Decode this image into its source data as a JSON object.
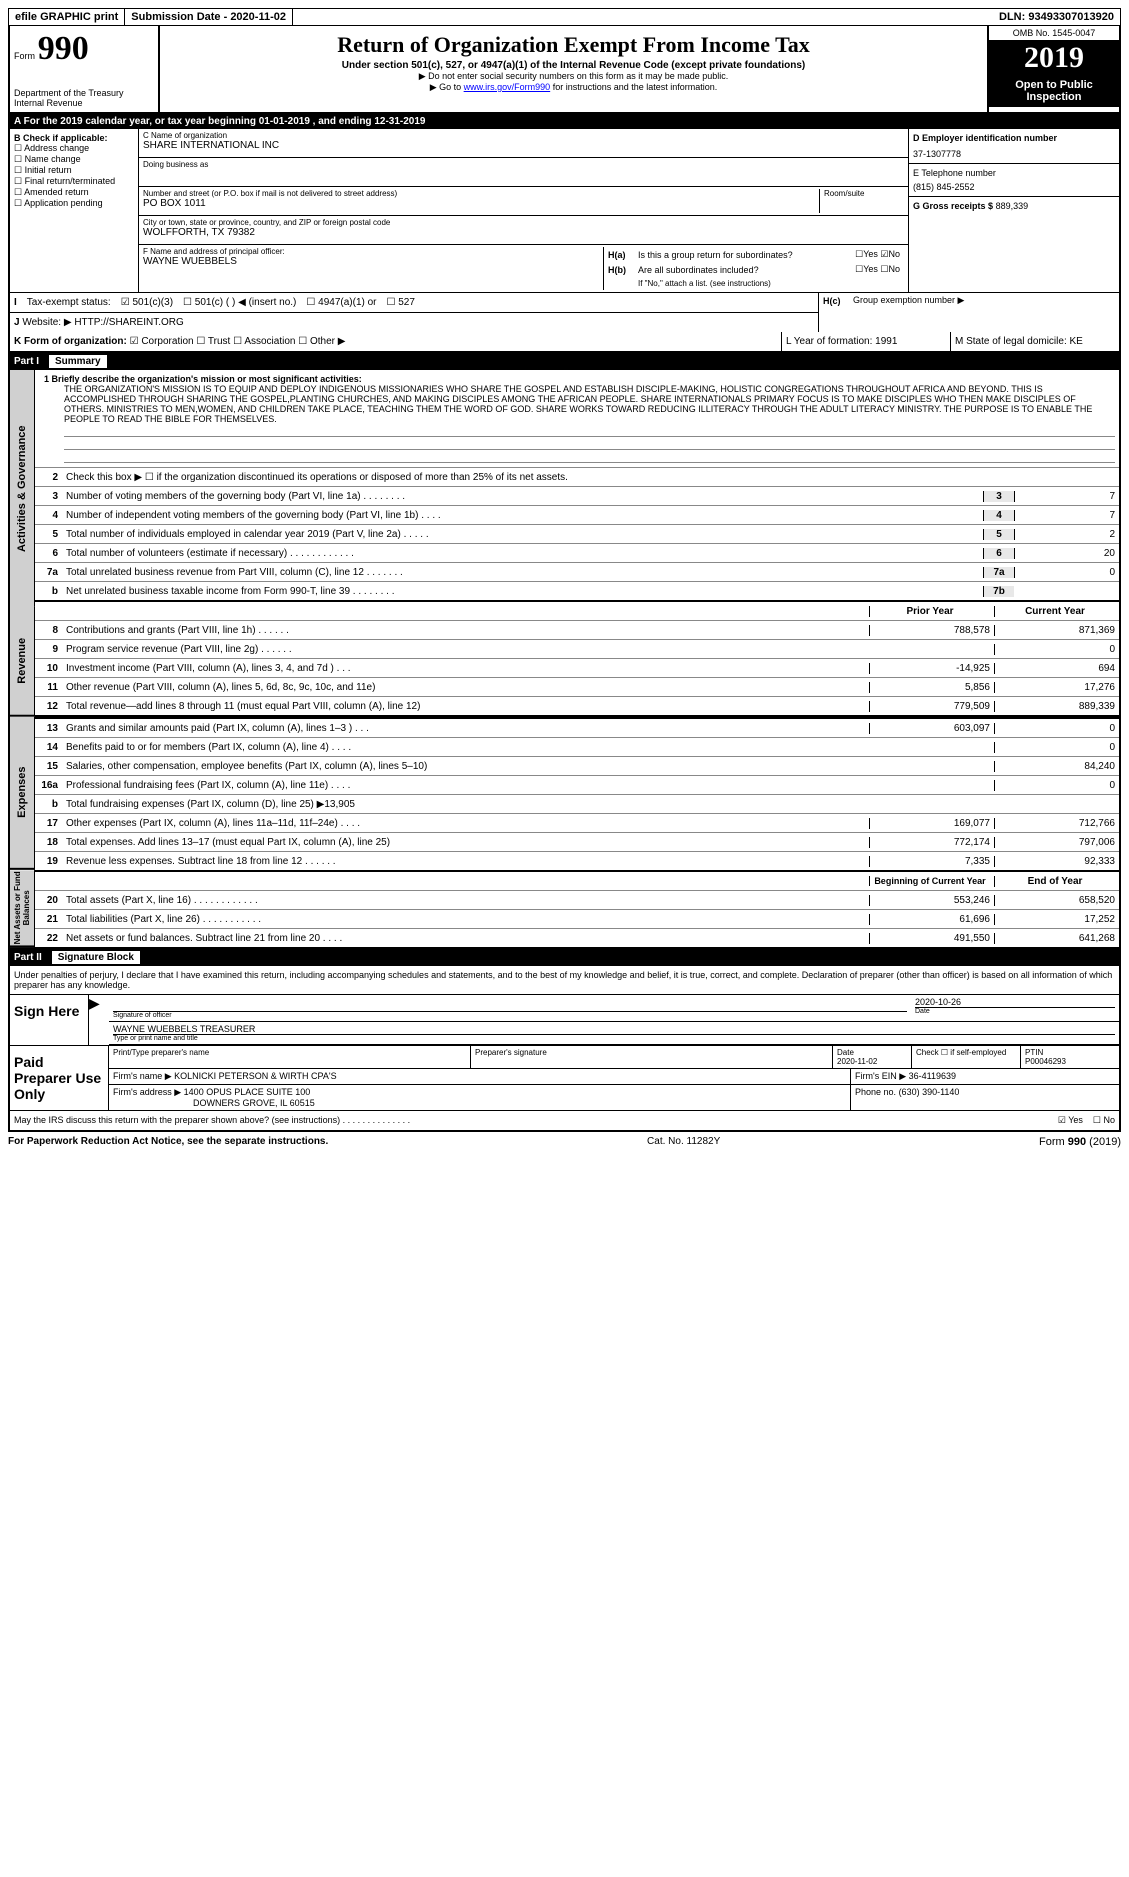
{
  "topbar": {
    "efile": "efile GRAPHIC print",
    "submission": "Submission Date - 2020-11-02",
    "dln": "DLN: 93493307013920"
  },
  "header": {
    "form_label": "Form",
    "form_num": "990",
    "dept": "Department of the Treasury\nInternal Revenue",
    "title": "Return of Organization Exempt From Income Tax",
    "subtitle": "Under section 501(c), 527, or 4947(a)(1) of the Internal Revenue Code (except private foundations)",
    "arrow1": "▶ Do not enter social security numbers on this form as it may be made public.",
    "arrow2_pre": "▶ Go to ",
    "arrow2_link": "www.irs.gov/Form990",
    "arrow2_post": " for instructions and the latest information.",
    "omb": "OMB No. 1545-0047",
    "year": "2019",
    "open": "Open to Public Inspection"
  },
  "row_a": "A  For the 2019 calendar year, or tax year beginning 01-01-2019     , and ending 12-31-2019",
  "col_b": {
    "title": "B Check if applicable:",
    "items": [
      "Address change",
      "Name change",
      "Initial return",
      "Final return/terminated",
      "Amended return",
      "Application pending"
    ]
  },
  "col_c": {
    "name_label": "C Name of organization",
    "name": "SHARE INTERNATIONAL INC",
    "dba_label": "Doing business as",
    "dba": "",
    "addr_label": "Number and street (or P.O. box if mail is not delivered to street address)",
    "addr": "PO BOX 1011",
    "room_label": "Room/suite",
    "city_label": "City or town, state or province, country, and ZIP or foreign postal code",
    "city": "WOLFFORTH, TX  79382",
    "officer_label": "F  Name and address of principal officer:",
    "officer": "WAYNE WUEBBELS"
  },
  "col_d": {
    "ein_label": "D Employer identification number",
    "ein": "37-1307778",
    "phone_label": "E Telephone number",
    "phone": "(815) 845-2552",
    "gross_label": "G Gross receipts $",
    "gross": "889,339"
  },
  "col_h": {
    "ha": "Is this a group return for subordinates?",
    "ha_yes": "Yes",
    "ha_no": "No",
    "ha_checked": "no",
    "hb": "Are all subordinates included?",
    "hb_note": "If \"No,\" attach a list. (see instructions)",
    "hc": "Group exemption number ▶"
  },
  "tax_status": {
    "label": "Tax-exempt status:",
    "opt1": "501(c)(3)",
    "opt2": "501(c) (  ) ◀ (insert no.)",
    "opt3": "4947(a)(1) or",
    "opt4": "527"
  },
  "website": {
    "label": "Website: ▶",
    "value": "HTTP://SHAREINT.ORG"
  },
  "row_k": {
    "k": "K Form of organization:",
    "opts": [
      "Corporation",
      "Trust",
      "Association",
      "Other ▶"
    ],
    "l": "L Year of formation: 1991",
    "m": "M State of legal domicile: KE"
  },
  "part1": {
    "num": "Part I",
    "title": "Summary"
  },
  "mission": {
    "label": "1   Briefly describe the organization's mission or most significant activities:",
    "text": "THE ORGANIZATION'S MISSION IS TO EQUIP AND DEPLOY INDIGENOUS MISSIONARIES WHO SHARE THE GOSPEL AND ESTABLISH DISCIPLE-MAKING, HOLISTIC CONGREGATIONS THROUGHOUT AFRICA AND BEYOND. THIS IS ACCOMPLISHED THROUGH SHARING THE GOSPEL,PLANTING CHURCHES, AND MAKING DISCIPLES AMONG THE AFRICAN PEOPLE. SHARE INTERNATIONALS PRIMARY FOCUS IS TO MAKE DISCIPLES WHO THEN MAKE DISCIPLES OF OTHERS. MINISTRIES TO MEN,WOMEN, AND CHILDREN TAKE PLACE, TEACHING THEM THE WORD OF GOD. SHARE WORKS TOWARD REDUCING ILLITERACY THROUGH THE ADULT LITERACY MINISTRY. THE PURPOSE IS TO ENABLE THE PEOPLE TO READ THE BIBLE FOR THEMSELVES."
  },
  "governance_lines": [
    {
      "n": "2",
      "desc": "Check this box ▶ ☐ if the organization discontinued its operations or disposed of more than 25% of its net assets.",
      "box": "",
      "val": ""
    },
    {
      "n": "3",
      "desc": "Number of voting members of the governing body (Part VI, line 1a)   .    .    .    .    .    .    .    .",
      "box": "3",
      "val": "7"
    },
    {
      "n": "4",
      "desc": "Number of independent voting members of the governing body (Part VI, line 1b)   .    .    .    .",
      "box": "4",
      "val": "7"
    },
    {
      "n": "5",
      "desc": "Total number of individuals employed in calendar year 2019 (Part V, line 2a)   .    .    .    .    .",
      "box": "5",
      "val": "2"
    },
    {
      "n": "6",
      "desc": "Total number of volunteers (estimate if necessary)   .    .    .    .    .    .    .    .    .    .    .    .",
      "box": "6",
      "val": "20"
    },
    {
      "n": "7a",
      "desc": "Total unrelated business revenue from Part VIII, column (C), line 12   .    .    .    .    .    .    .",
      "box": "7a",
      "val": "0"
    },
    {
      "n": "b",
      "desc": "Net unrelated business taxable income from Form 990-T, line 39   .    .    .    .    .    .    .    .",
      "box": "7b",
      "val": ""
    }
  ],
  "year_headers": {
    "py": "Prior Year",
    "cy": "Current Year"
  },
  "revenue_lines": [
    {
      "n": "8",
      "desc": "Contributions and grants (Part VIII, line 1h)   .    .    .    .    .    .",
      "py": "788,578",
      "cy": "871,369"
    },
    {
      "n": "9",
      "desc": "Program service revenue (Part VIII, line 2g)   .    .    .    .    .    .",
      "py": "",
      "cy": "0"
    },
    {
      "n": "10",
      "desc": "Investment income (Part VIII, column (A), lines 3, 4, and 7d )   .    .    .",
      "py": "-14,925",
      "cy": "694"
    },
    {
      "n": "11",
      "desc": "Other revenue (Part VIII, column (A), lines 5, 6d, 8c, 9c, 10c, and 11e)",
      "py": "5,856",
      "cy": "17,276"
    },
    {
      "n": "12",
      "desc": "Total revenue—add lines 8 through 11 (must equal Part VIII, column (A), line 12)",
      "py": "779,509",
      "cy": "889,339"
    }
  ],
  "expense_lines": [
    {
      "n": "13",
      "desc": "Grants and similar amounts paid (Part IX, column (A), lines 1–3 )   .    .    .",
      "py": "603,097",
      "cy": "0"
    },
    {
      "n": "14",
      "desc": "Benefits paid to or for members (Part IX, column (A), line 4)   .    .    .    .",
      "py": "",
      "cy": "0"
    },
    {
      "n": "15",
      "desc": "Salaries, other compensation, employee benefits (Part IX, column (A), lines 5–10)",
      "py": "",
      "cy": "84,240"
    },
    {
      "n": "16a",
      "desc": "Professional fundraising fees (Part IX, column (A), line 11e)   .    .    .    .",
      "py": "",
      "cy": "0"
    },
    {
      "n": "b",
      "desc": "Total fundraising expenses (Part IX, column (D), line 25) ▶13,905",
      "py": "shaded",
      "cy": "shaded"
    },
    {
      "n": "17",
      "desc": "Other expenses (Part IX, column (A), lines 11a–11d, 11f–24e)   .    .    .    .",
      "py": "169,077",
      "cy": "712,766"
    },
    {
      "n": "18",
      "desc": "Total expenses. Add lines 13–17 (must equal Part IX, column (A), line 25)",
      "py": "772,174",
      "cy": "797,006"
    },
    {
      "n": "19",
      "desc": "Revenue less expenses. Subtract line 18 from line 12   .    .    .    .    .    .",
      "py": "7,335",
      "cy": "92,333"
    }
  ],
  "balance_headers": {
    "py": "Beginning of Current Year",
    "cy": "End of Year"
  },
  "balance_lines": [
    {
      "n": "20",
      "desc": "Total assets (Part X, line 16)   .    .    .    .    .    .    .    .    .    .    .    .",
      "py": "553,246",
      "cy": "658,520"
    },
    {
      "n": "21",
      "desc": "Total liabilities (Part X, line 26)   .    .    .    .    .    .    .    .    .    .    .",
      "py": "61,696",
      "cy": "17,252"
    },
    {
      "n": "22",
      "desc": "Net assets or fund balances. Subtract line 21 from line 20   .    .    .    .",
      "py": "491,550",
      "cy": "641,268"
    }
  ],
  "side_labels": {
    "gov": "Activities & Governance",
    "rev": "Revenue",
    "exp": "Expenses",
    "bal": "Net Assets or Fund Balances"
  },
  "part2": {
    "num": "Part II",
    "title": "Signature Block"
  },
  "sig": {
    "declaration": "Under penalties of perjury, I declare that I have examined this return, including accompanying schedules and statements, and to the best of my knowledge and belief, it is true, correct, and complete. Declaration of preparer (other than officer) is based on all information of which preparer has any knowledge.",
    "sign_here": "Sign Here",
    "sig_officer": "Signature of officer",
    "date": "2020-10-26",
    "date_label": "Date",
    "name": "WAYNE WUEBBELS TREASURER",
    "name_label": "Type or print name and title",
    "paid_label": "Paid Preparer Use Only",
    "prep_name_label": "Print/Type preparer's name",
    "prep_sig_label": "Preparer's signature",
    "prep_date_label": "Date",
    "prep_date": "2020-11-02",
    "check_label": "Check ☐ if self-employed",
    "ptin_label": "PTIN",
    "ptin": "P00046293",
    "firm_name_label": "Firm's name      ▶",
    "firm_name": "KOLNICKI PETERSON & WIRTH CPA'S",
    "firm_ein_label": "Firm's EIN ▶",
    "firm_ein": "36-4119639",
    "firm_addr_label": "Firm's address ▶",
    "firm_addr": "1400 OPUS PLACE SUITE 100",
    "firm_city": "DOWNERS GROVE, IL  60515",
    "phone_label": "Phone no.",
    "phone": "(630) 390-1140",
    "discuss": "May the IRS discuss this return with the preparer shown above? (see instructions)   .    .    .    .    .    .    .    .    .    .    .    .    .    .",
    "discuss_yes": "Yes",
    "discuss_no": "No"
  },
  "footer": {
    "left": "For Paperwork Reduction Act Notice, see the separate instructions.",
    "center": "Cat. No. 11282Y",
    "right_form": "Form ",
    "right_num": "990",
    "right_year": " (2019)"
  }
}
